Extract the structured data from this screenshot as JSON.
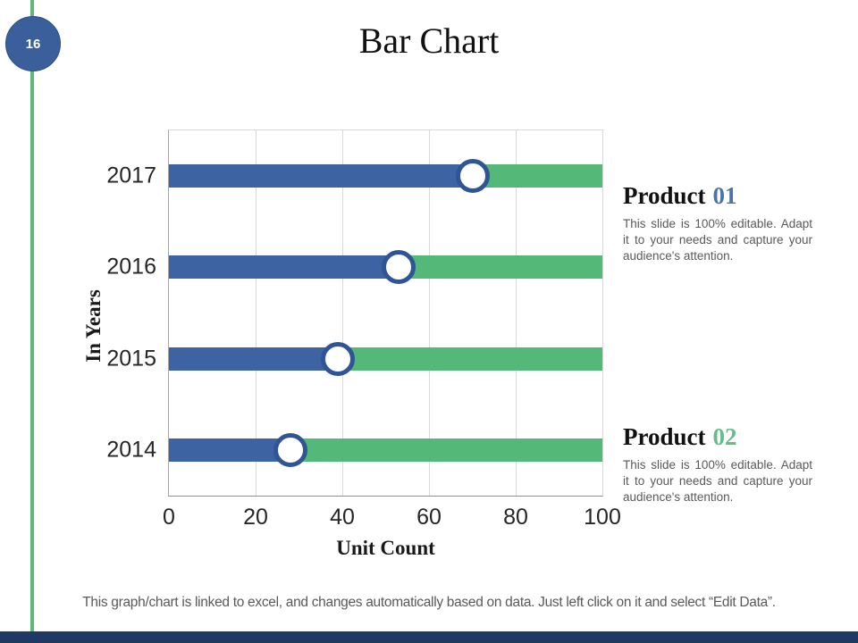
{
  "page": {
    "number": "16"
  },
  "title": "Bar Chart",
  "products": [
    {
      "name": "Product",
      "number": "01",
      "body": "This slide is 100% editable. Adapt it to your needs and capture your audience's attention."
    },
    {
      "name": "Product",
      "number": "02",
      "body": "This slide is 100% editable. Adapt it to your needs and capture your audience's attention."
    }
  ],
  "caption": "This graph/chart is linked to excel, and changes automatically based on data. Just left click on it and select “Edit Data”.",
  "chart_data": {
    "type": "bar",
    "orientation": "horizontal",
    "title": "Bar Chart",
    "xlabel": "Unit Count",
    "ylabel": "In Years",
    "categories": [
      "2017",
      "2016",
      "2015",
      "2014"
    ],
    "series": [
      {
        "name": "Product 01",
        "color": "#3D63A3",
        "values": [
          70,
          53,
          39,
          28
        ]
      },
      {
        "name": "Product 02",
        "color": "#53B878",
        "values": [
          30,
          47,
          61,
          72
        ]
      }
    ],
    "stacked": true,
    "marker": {
      "shape": "circle",
      "fill": "#FFFFFF",
      "ring": "#2F5596",
      "at_values": [
        70,
        53,
        39,
        28
      ]
    },
    "xlim": [
      0,
      100
    ],
    "xticks": [
      0,
      20,
      40,
      60,
      80,
      100
    ],
    "grid": "vertical"
  },
  "colors": {
    "accent_navy": "#1F3864",
    "accent_navy_light": "#3A5F9B",
    "accent_green": "#5BB878",
    "bar_blue": "#3D63A3",
    "bar_green": "#53B878",
    "marker_ring": "#2F5596",
    "number_blue": "#4A74AC",
    "number_green": "#63BE8C",
    "text_gray": "#595959"
  }
}
